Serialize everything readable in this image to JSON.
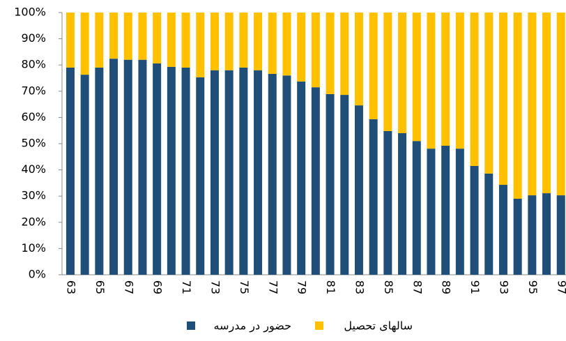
{
  "chart_data": {
    "type": "stacked_bar_100",
    "categories": [
      "63",
      null,
      "65",
      null,
      "67",
      null,
      "69",
      null,
      "71",
      null,
      "73",
      null,
      "75",
      null,
      "77",
      null,
      "79",
      null,
      "81",
      null,
      "83",
      null,
      "85",
      null,
      "87",
      null,
      "89",
      null,
      "91",
      null,
      "93",
      null,
      "95",
      null,
      "97"
    ],
    "series": [
      {
        "name": "حضور در مدرسه",
        "color": "#1f4e79",
        "values": [
          79,
          76.3,
          79,
          82.4,
          82,
          82,
          80.6,
          79.3,
          79,
          75.3,
          78,
          78,
          79,
          78,
          76.6,
          76,
          73.7,
          71.5,
          68.9,
          68.6,
          64.6,
          59.3,
          54.8,
          54,
          51,
          48.1,
          49.2,
          48.1,
          41.5,
          38.6,
          34.3,
          29,
          30.3,
          31.1,
          30.3
        ]
      },
      {
        "name": "سالهای تحصیل",
        "color": "#ffc000",
        "values": [
          21,
          23.7,
          21,
          17.6,
          18,
          18,
          19.4,
          20.7,
          21,
          24.7,
          22,
          22,
          21,
          22,
          23.4,
          24,
          26.3,
          28.5,
          31.1,
          31.4,
          35.4,
          40.7,
          45.2,
          46,
          49,
          51.9,
          50.8,
          51.9,
          58.5,
          61.4,
          65.7,
          71,
          69.7,
          68.9,
          69.7
        ]
      }
    ],
    "ylim": [
      0,
      100
    ],
    "yticks": [
      {
        "value": 0,
        "label": "0%"
      },
      {
        "value": 10,
        "label": "10%"
      },
      {
        "value": 20,
        "label": "20%"
      },
      {
        "value": 30,
        "label": "30%"
      },
      {
        "value": 40,
        "label": "40%"
      },
      {
        "value": 50,
        "label": "50%"
      },
      {
        "value": 60,
        "label": "60%"
      },
      {
        "value": 70,
        "label": "70%"
      },
      {
        "value": 80,
        "label": "80%"
      },
      {
        "value": 90,
        "label": "90%"
      },
      {
        "value": 100,
        "label": "100%"
      }
    ]
  }
}
